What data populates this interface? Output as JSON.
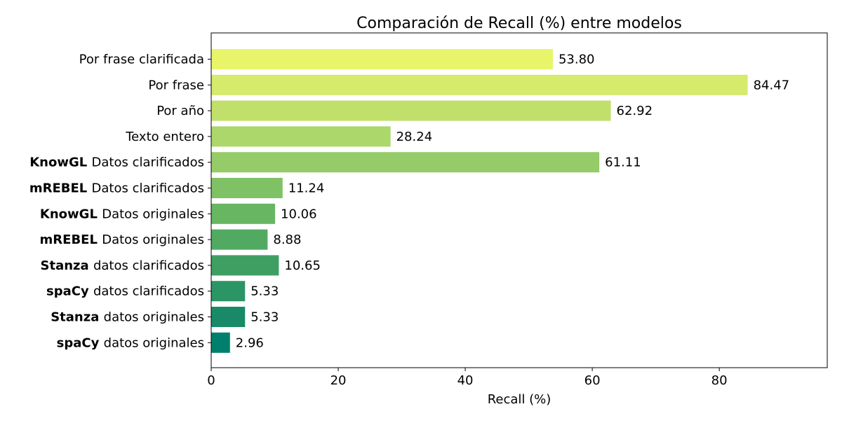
{
  "chart_data": {
    "type": "bar",
    "orientation": "horizontal",
    "title": "Comparación de Recall (%) entre modelos",
    "xlabel": "Recall (%)",
    "ylabel": "",
    "xlim": [
      0,
      97
    ],
    "xticks": [
      0,
      20,
      40,
      60,
      80
    ],
    "grid": false,
    "categories": [
      {
        "bold": "",
        "text": "Por frase clarificada"
      },
      {
        "bold": "",
        "text": "Por frase"
      },
      {
        "bold": "",
        "text": "Por año"
      },
      {
        "bold": "",
        "text": "Texto entero"
      },
      {
        "bold": "KnowGL",
        "text": "Datos clarificados"
      },
      {
        "bold": "mREBEL",
        "text": "Datos clarificados"
      },
      {
        "bold": "KnowGL",
        "text": "Datos originales"
      },
      {
        "bold": "mREBEL",
        "text": "Datos originales"
      },
      {
        "bold": "Stanza",
        "text": "datos clarificados"
      },
      {
        "bold": "spaCy",
        "text": "datos clarificados"
      },
      {
        "bold": "Stanza",
        "text": "datos originales"
      },
      {
        "bold": "spaCy",
        "text": "datos originales"
      }
    ],
    "values": [
      53.8,
      84.47,
      62.92,
      28.24,
      61.11,
      11.24,
      10.06,
      8.88,
      10.65,
      5.33,
      5.33,
      2.96
    ],
    "value_labels": [
      "53.80",
      "84.47",
      "62.92",
      "28.24",
      "61.11",
      "11.24",
      "10.06",
      "8.88",
      "10.65",
      "5.33",
      "5.33",
      "2.96"
    ],
    "colors": [
      "#e8f56a",
      "#d6ea6b",
      "#c1e06b",
      "#acd76a",
      "#95cc69",
      "#7fc165",
      "#68b662",
      "#52aa62",
      "#3f9f62",
      "#2b9566",
      "#188a68",
      "#00806c"
    ]
  }
}
